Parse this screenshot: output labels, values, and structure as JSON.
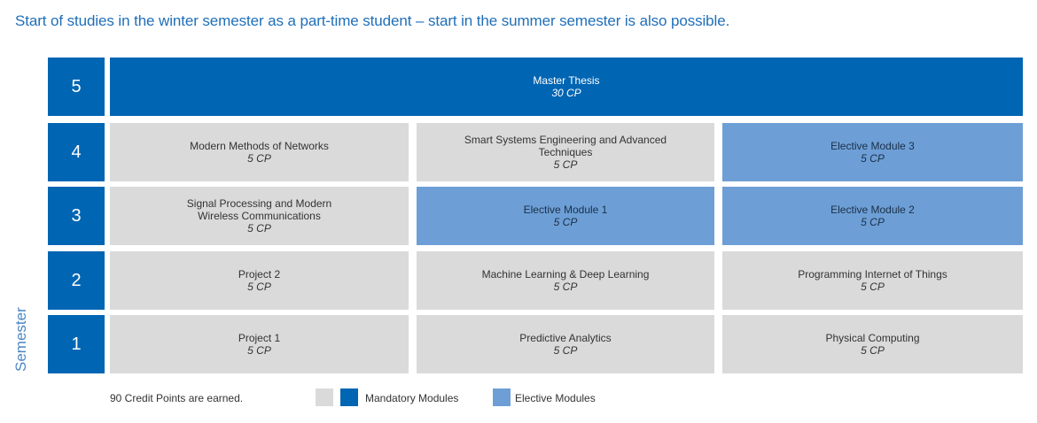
{
  "headline": "Start of studies in the winter semester as a part-time student – start in the summer semester is also possible.",
  "axis_label": "Semester",
  "semesters": [
    "5",
    "4",
    "3",
    "2",
    "1"
  ],
  "thesis": {
    "name": "Master Thesis",
    "cp": "30 CP"
  },
  "sem4": [
    {
      "name": "Modern Methods of Networks",
      "cp": "5 CP",
      "type": "mandatory"
    },
    {
      "name": "Smart Systems Engineering and Advanced Techniques",
      "cp": "5 CP",
      "type": "mandatory"
    },
    {
      "name": "Elective Module 3",
      "cp": "5 CP",
      "type": "elective"
    }
  ],
  "sem3": [
    {
      "name": "Signal Processing and Modern Wireless Communications",
      "cp": "5 CP",
      "type": "mandatory"
    },
    {
      "name": "Elective Module 1",
      "cp": "5 CP",
      "type": "elective"
    },
    {
      "name": "Elective Module 2",
      "cp": "5 CP",
      "type": "elective"
    }
  ],
  "sem2": [
    {
      "name": "Project 2",
      "cp": "5 CP",
      "type": "mandatory"
    },
    {
      "name": "Machine Learning & Deep Learning",
      "cp": "5 CP",
      "type": "mandatory"
    },
    {
      "name": "Programming Internet of Things",
      "cp": "5 CP",
      "type": "mandatory"
    }
  ],
  "sem1": [
    {
      "name": "Project 1",
      "cp": "5 CP",
      "type": "mandatory"
    },
    {
      "name": "Predictive Analytics",
      "cp": "5 CP",
      "type": "mandatory"
    },
    {
      "name": "Physical Computing",
      "cp": "5 CP",
      "type": "mandatory"
    }
  ],
  "legend": {
    "credits": "90 Credit Points are earned.",
    "mandatory": "Mandatory Modules",
    "elective": "Elective Modules",
    "colors": {
      "mandatory_grey": "#dadada",
      "mandatory_blue": "#0065b3",
      "elective": "#6d9fd6"
    }
  }
}
